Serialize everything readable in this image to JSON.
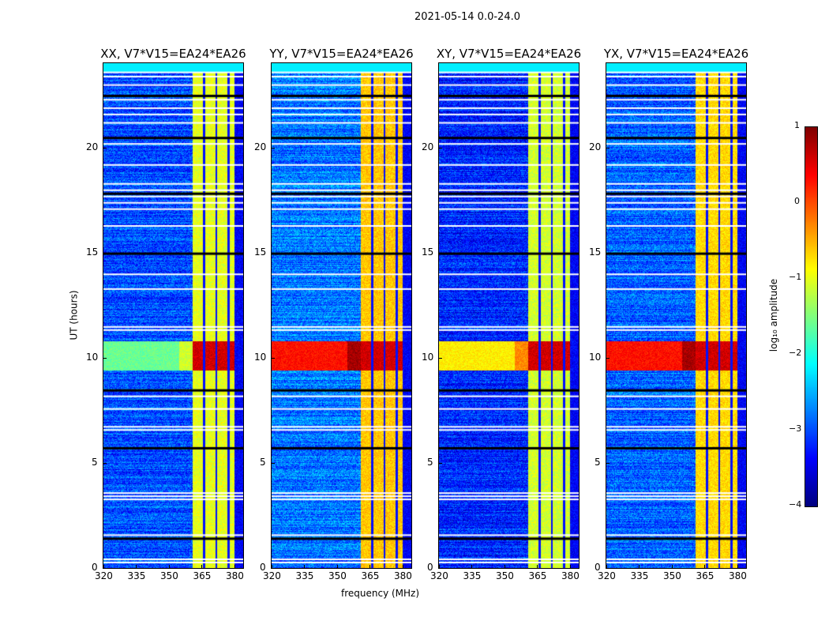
{
  "chart_data": {
    "type": "heatmap",
    "title": "2021-05-14 0.0-24.0",
    "xlabel": "frequency (MHz)",
    "ylabel": "UT (hours)",
    "xlim": [
      320,
      384
    ],
    "ylim": [
      0,
      24
    ],
    "xticks": [
      "320",
      "335",
      "350",
      "365",
      "380"
    ],
    "xtick_values": [
      320,
      335,
      350,
      365,
      380
    ],
    "yticks": [
      "0",
      "5",
      "10",
      "15",
      "20"
    ],
    "ytick_values": [
      0,
      5,
      10,
      15,
      20
    ],
    "panels": [
      {
        "title": "XX, V7*V15=EA24*EA26",
        "background_log_amp": -3.0,
        "band_log_amp": -1.0,
        "event_log_amp": -1.6
      },
      {
        "title": "YY, V7*V15=EA24*EA26",
        "background_log_amp": -2.8,
        "band_log_amp": -0.6,
        "event_log_amp": 0.3
      },
      {
        "title": "XY, V7*V15=EA24*EA26",
        "background_log_amp": -3.2,
        "band_log_amp": -1.1,
        "event_log_amp": -0.8
      },
      {
        "title": "YX, V7*V15=EA24*EA26",
        "background_log_amp": -2.9,
        "band_log_amp": -0.7,
        "event_log_amp": 0.3
      }
    ],
    "rfi_band_MHz": [
      360.5,
      380
    ],
    "band_gaps_MHz": [
      366,
      371.5,
      377
    ],
    "event_UT": [
      9.4,
      10.8
    ],
    "flagged_UT": [
      0.3,
      0.45,
      1.45,
      1.6,
      3.3,
      3.45,
      3.6,
      5.75,
      6.6,
      6.75,
      7.6,
      8.2,
      8.5,
      11.35,
      11.5,
      13.3,
      14.0,
      15.0,
      16.3,
      17.1,
      17.4,
      17.7,
      17.85,
      18.0,
      18.3,
      19.2,
      20.2,
      20.5,
      21.2,
      21.6,
      21.9,
      22.3,
      22.5,
      23.0,
      23.4,
      23.6
    ],
    "colorbar": {
      "label": "log₁₀ amplitude",
      "ticks": [
        "1",
        "0",
        "−1",
        "−2",
        "−3",
        "−4"
      ],
      "tick_values": [
        1,
        0,
        -1,
        -2,
        -3,
        -4
      ],
      "range": [
        -4,
        1
      ],
      "colormap": "jet"
    }
  }
}
